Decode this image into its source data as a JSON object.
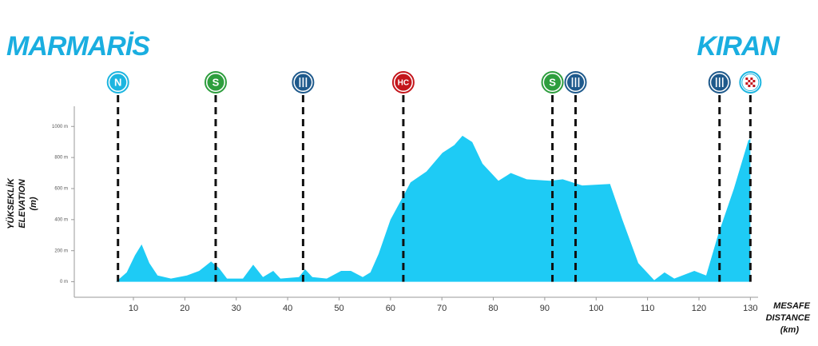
{
  "chart_data": {
    "type": "area",
    "start": "MARMARİS",
    "finish": "KIRAN",
    "y_label": [
      "YÜKSEKLİK",
      "ELEVATION",
      "(m)"
    ],
    "x_label": [
      "MESAFE",
      "DISTANCE",
      "(km)"
    ],
    "color": "#1ecbf5",
    "x": [
      6.6,
      8.7,
      10.3,
      11.6,
      13.1,
      14.7,
      17.3,
      20.4,
      22.8,
      25.1,
      26.6,
      28.2,
      31.3,
      33.3,
      35.2,
      37.2,
      38.6,
      42.2,
      43.4,
      44.8,
      47.6,
      50.4,
      52.3,
      54.6,
      56.1,
      57.7,
      60,
      62.3,
      63.9,
      67,
      70.1,
      72.4,
      74,
      75.9,
      77.9,
      81,
      83.4,
      86.5,
      91.1,
      93.5,
      97.3,
      102.7,
      105.1,
      108.2,
      111.3,
      113.3,
      115.2,
      119.1,
      121.4,
      123.7,
      126.8,
      129.6,
      130
    ],
    "values": [
      0,
      60,
      170,
      240,
      120,
      40,
      20,
      40,
      70,
      130,
      90,
      20,
      20,
      110,
      30,
      70,
      20,
      30,
      80,
      30,
      20,
      70,
      70,
      30,
      60,
      180,
      400,
      540,
      640,
      710,
      830,
      880,
      940,
      900,
      760,
      650,
      700,
      660,
      650,
      660,
      620,
      630,
      400,
      120,
      10,
      60,
      20,
      70,
      40,
      300,
      600,
      910,
      920
    ],
    "xlim": [
      -1.5,
      131.5
    ],
    "ylim": [
      -100,
      1130
    ],
    "xticks": [
      10,
      20,
      30,
      40,
      50,
      60,
      70,
      80,
      90,
      100,
      110,
      120,
      130
    ],
    "yticks": [
      {
        "value": 0,
        "label": "0 m"
      },
      {
        "value": 200,
        "label": "200 m"
      },
      {
        "value": 400,
        "label": "400 m"
      },
      {
        "value": 600,
        "label": "600 m"
      },
      {
        "value": 800,
        "label": "800 m"
      },
      {
        "value": 1000,
        "label": "1000 m"
      }
    ],
    "markers": [
      {
        "label": "N",
        "km": 7,
        "color": "#1cb5e0"
      },
      {
        "label": "S",
        "km": 26,
        "color": "#2e9e3e"
      },
      {
        "icon": "food",
        "km": 43,
        "color": "#1f5a8c"
      },
      {
        "label": "HC",
        "km": 62.5,
        "color": "#c4161c"
      },
      {
        "label": "S",
        "km": 91.5,
        "color": "#2e9e3e"
      },
      {
        "icon": "food",
        "km": 96,
        "color": "#1f5a8c"
      },
      {
        "icon": "food",
        "km": 124,
        "color": "#1f5a8c"
      },
      {
        "icon": "finish",
        "km": 130,
        "color": "#1cb5e0"
      }
    ]
  }
}
